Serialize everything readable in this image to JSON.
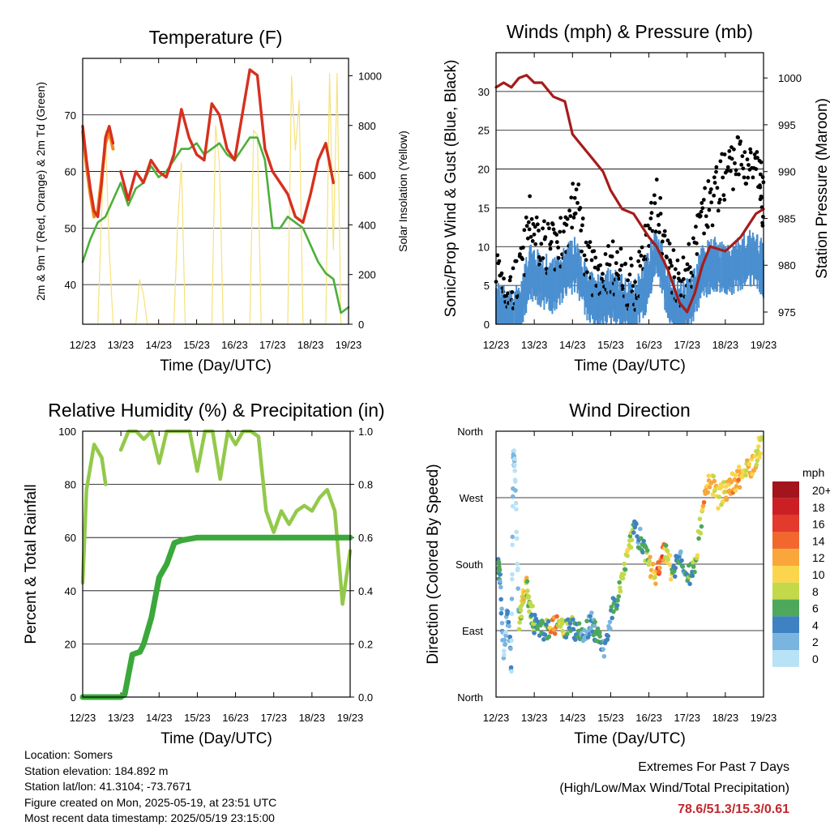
{
  "colors": {
    "temp": "#d7301f",
    "temp9m": "#f28a1b",
    "dew": "#4caf3a",
    "solar": "#f6e27a",
    "wind": "#4a8fd0",
    "gust": "#000000",
    "pressure": "#a51c1c",
    "rh": "#93c94a",
    "precip": "#3aa83a",
    "grid": "#000000"
  },
  "chart_data": [
    {
      "type": "line",
      "title": "Temperature (F)",
      "xlabel": "Time (Day/UTC)",
      "ylabel": "2m & 9m T (Red, Orange) & 2m Td (Green)",
      "ylabel_right": "Solar Insolation (Yellow)",
      "x_ticks": [
        "12/23",
        "13/23",
        "14/23",
        "15/23",
        "16/23",
        "17/23",
        "18/23",
        "19/23"
      ],
      "ylim": [
        33,
        80
      ],
      "ylim_right": [
        0,
        1070
      ],
      "y_ticks": [
        40,
        50,
        60,
        70
      ],
      "y_ticks_right": [
        0,
        200,
        400,
        600,
        800,
        1000
      ],
      "grid": true,
      "series": [
        {
          "role": "2m T",
          "x": [
            0,
            0.1,
            0.2,
            0.3,
            0.4,
            0.5,
            0.6,
            0.7,
            0.8,
            0.9,
            1.0,
            1.2,
            1.4,
            1.6,
            1.8,
            2.0,
            2.2,
            2.4,
            2.6,
            2.8,
            3.0,
            3.2,
            3.4,
            3.6,
            3.8,
            4.0,
            4.2,
            4.4,
            4.6,
            4.8,
            5.0,
            5.2,
            5.4,
            5.6,
            5.8,
            6.0,
            6.2,
            6.4,
            6.6,
            6.8,
            7.0
          ],
          "y": [
            68,
            62,
            57,
            53,
            52,
            58,
            66,
            68,
            65,
            null,
            60,
            55,
            60,
            58,
            62,
            60,
            59,
            63,
            71,
            66,
            63,
            62,
            72,
            70,
            64,
            62,
            70,
            78,
            77,
            64,
            60,
            58,
            56,
            52,
            51,
            56,
            62,
            65,
            58,
            null,
            null
          ]
        },
        {
          "role": "9m T",
          "x": [
            0,
            0.1,
            0.2,
            0.3,
            0.4,
            0.5,
            0.6,
            0.7,
            0.8
          ],
          "y": [
            67,
            61,
            56,
            52,
            53,
            59,
            65,
            67,
            64
          ]
        },
        {
          "role": "2m Td",
          "x": [
            0,
            0.2,
            0.4,
            0.6,
            0.8,
            1.0,
            1.2,
            1.4,
            1.6,
            1.8,
            2.0,
            2.2,
            2.4,
            2.6,
            2.8,
            3.0,
            3.2,
            3.4,
            3.6,
            3.8,
            4.0,
            4.2,
            4.4,
            4.6,
            4.8,
            5.0,
            5.2,
            5.4,
            5.6,
            5.8,
            6.0,
            6.2,
            6.4,
            6.6,
            6.8,
            7.0
          ],
          "y": [
            44,
            48,
            51,
            52,
            55,
            58,
            54,
            57,
            58,
            61,
            59,
            60,
            62,
            64,
            64,
            65,
            63,
            64,
            65,
            63,
            62,
            64,
            66,
            66,
            62,
            50,
            50,
            52,
            51,
            50,
            47,
            44,
            42,
            41,
            35,
            36
          ]
        },
        {
          "role": "Solar",
          "x": [
            0.4,
            0.5,
            0.6,
            0.7,
            0.8,
            1.4,
            1.5,
            1.6,
            1.7,
            2.4,
            2.5,
            2.6,
            2.7,
            3.4,
            3.5,
            3.6,
            3.7,
            4.4,
            4.5,
            4.6,
            4.7,
            5.4,
            5.5,
            5.6,
            5.7,
            5.8,
            6.4,
            6.5,
            6.6,
            6.7,
            6.8
          ],
          "y": [
            0,
            450,
            780,
            300,
            0,
            0,
            180,
            120,
            0,
            0,
            400,
            650,
            0,
            0,
            800,
            650,
            0,
            0,
            780,
            760,
            0,
            0,
            1000,
            700,
            900,
            0,
            0,
            1010,
            300,
            1010,
            0
          ]
        }
      ]
    },
    {
      "type": "line",
      "title": "Winds (mph) & Pressure (mb)",
      "xlabel": "Time (Day/UTC)",
      "ylabel": "Sonic/Prop Wind & Gust (Blue, Black)",
      "ylabel_right": "Station Pressure (Maroon)",
      "x_ticks": [
        "12/23",
        "13/23",
        "14/23",
        "15/23",
        "16/23",
        "17/23",
        "18/23",
        "19/23"
      ],
      "ylim": [
        0,
        35
      ],
      "ylim_right": [
        973.7,
        1002.7
      ],
      "y_ticks": [
        0,
        5,
        10,
        15,
        20,
        25,
        30
      ],
      "y_ticks_right": [
        975,
        980,
        985,
        990,
        995,
        1000
      ],
      "grid": true,
      "series": [
        {
          "role": "Wind",
          "x": [
            0,
            0.3,
            0.6,
            0.9,
            1.2,
            1.5,
            1.8,
            2.1,
            2.4,
            2.7,
            3.0,
            3.3,
            3.6,
            3.9,
            4.2,
            4.5,
            4.8,
            5.1,
            5.4,
            5.7,
            6.0,
            6.3,
            6.6,
            6.9,
            7.0
          ],
          "y": [
            4,
            2,
            3,
            8,
            7,
            6,
            8,
            9,
            5,
            4,
            5,
            4,
            3,
            6,
            11,
            5,
            3,
            4,
            8,
            9,
            8,
            9,
            10,
            9,
            8
          ]
        },
        {
          "role": "Gust",
          "x": [
            0,
            0.3,
            0.6,
            0.9,
            1.2,
            1.5,
            1.8,
            2.1,
            2.4,
            2.7,
            3.0,
            3.3,
            3.6,
            3.9,
            4.2,
            4.5,
            4.8,
            5.1,
            5.4,
            5.7,
            6.0,
            6.3,
            6.6,
            6.9,
            7.0
          ],
          "y": [
            8,
            5,
            6,
            14,
            11,
            10,
            12,
            17,
            8,
            7,
            8,
            7,
            5,
            10,
            16,
            9,
            6,
            8,
            14,
            17,
            20,
            22,
            21,
            19,
            16
          ]
        },
        {
          "role": "Pressure",
          "x": [
            0,
            0.2,
            0.4,
            0.6,
            0.8,
            1.0,
            1.2,
            1.5,
            1.8,
            2.0,
            2.2,
            2.5,
            2.8,
            3.0,
            3.3,
            3.6,
            4.0,
            4.2,
            4.5,
            4.8,
            5.0,
            5.2,
            5.4,
            5.6,
            6.0,
            6.4,
            6.8,
            7.0
          ],
          "y": [
            999,
            999.5,
            999,
            1000,
            1000.3,
            999.5,
            999.5,
            998,
            997.5,
            994,
            993,
            991.5,
            990,
            988,
            986,
            985.5,
            983,
            982,
            979.5,
            976,
            975,
            977,
            980,
            982,
            981.5,
            983,
            985.5,
            986
          ]
        }
      ]
    },
    {
      "type": "line",
      "title": "Relative Humidity (%) & Precipitation (in)",
      "xlabel": "Time (Day/UTC)",
      "ylabel": "Percent & Total Rainfall",
      "x_ticks": [
        "12/23",
        "13/23",
        "14/23",
        "15/23",
        "16/23",
        "17/23",
        "18/23",
        "19/23"
      ],
      "ylim": [
        0,
        100
      ],
      "ylim_right": [
        0,
        1.0
      ],
      "y_ticks": [
        0,
        20,
        40,
        60,
        80,
        100
      ],
      "y_ticks_right": [
        "0.0",
        "0.2",
        "0.4",
        "0.6",
        "0.8",
        "1.0"
      ],
      "grid": true,
      "series": [
        {
          "role": "RH",
          "x": [
            0,
            0.1,
            0.3,
            0.5,
            0.6,
            0.8,
            1.0,
            1.2,
            1.4,
            1.6,
            1.8,
            2.0,
            2.2,
            2.4,
            2.6,
            2.8,
            3.0,
            3.2,
            3.4,
            3.6,
            3.8,
            4.0,
            4.2,
            4.4,
            4.6,
            4.8,
            5.0,
            5.2,
            5.4,
            5.6,
            5.8,
            6.0,
            6.2,
            6.4,
            6.6,
            6.8,
            7.0
          ],
          "y": [
            43,
            78,
            95,
            90,
            80,
            null,
            93,
            100,
            100,
            97,
            100,
            88,
            100,
            100,
            100,
            100,
            85,
            100,
            100,
            82,
            100,
            95,
            100,
            100,
            98,
            70,
            62,
            70,
            65,
            70,
            72,
            70,
            75,
            78,
            70,
            35,
            55
          ]
        },
        {
          "role": "Precipitation",
          "x": [
            0,
            0.5,
            1.0,
            1.1,
            1.3,
            1.5,
            1.6,
            1.8,
            2.0,
            2.2,
            2.4,
            2.6,
            3.0,
            4.0,
            5.0,
            6.0,
            7.0
          ],
          "y": [
            0,
            0,
            0,
            0.01,
            0.16,
            0.17,
            0.2,
            0.3,
            0.45,
            0.5,
            0.58,
            0.59,
            0.6,
            0.6,
            0.6,
            0.6,
            0.6
          ]
        }
      ]
    },
    {
      "type": "scatter",
      "title": "Wind Direction",
      "xlabel": "Time (Day/UTC)",
      "ylabel": "Direction (Colored By Speed)",
      "x_ticks": [
        "12/23",
        "13/23",
        "14/23",
        "15/23",
        "16/23",
        "17/23",
        "18/23",
        "19/23"
      ],
      "y_ticks": [
        "North",
        "East",
        "South",
        "West",
        "North"
      ],
      "ylim": [
        0,
        360
      ],
      "grid": true,
      "legend": {
        "title": "mph",
        "labels": [
          "20+",
          "18",
          "16",
          "14",
          "12",
          "10",
          "8",
          "6",
          "4",
          "2",
          "0"
        ],
        "colors": [
          "#a4141c",
          "#cc1f24",
          "#e23a2c",
          "#f2672d",
          "#f9a63b",
          "#fbd64c",
          "#c3d94a",
          "#4ea85c",
          "#3f82c3",
          "#7ab5e0",
          "#b8e2f6"
        ]
      },
      "points": {
        "x": [
          0.05,
          0.1,
          0.2,
          0.3,
          0.4,
          0.45,
          0.5,
          0.6,
          0.7,
          0.8,
          0.9,
          1.0,
          1.2,
          1.4,
          1.6,
          1.8,
          2.0,
          2.2,
          2.4,
          2.5,
          2.6,
          2.8,
          3.0,
          3.2,
          3.4,
          3.6,
          3.8,
          4.0,
          4.2,
          4.4,
          4.6,
          4.8,
          5.0,
          5.2,
          5.4,
          5.6,
          5.8,
          6.0,
          6.2,
          6.4,
          6.6,
          6.8,
          6.95
        ],
        "y": [
          180,
          160,
          60,
          120,
          40,
          340,
          300,
          100,
          130,
          150,
          120,
          100,
          90,
          95,
          95,
          90,
          95,
          85,
          95,
          100,
          90,
          60,
          110,
          140,
          190,
          230,
          210,
          180,
          160,
          200,
          170,
          190,
          160,
          180,
          250,
          300,
          270,
          280,
          290,
          300,
          310,
          320,
          350
        ],
        "speed": [
          4,
          3,
          2,
          3,
          1,
          1,
          0,
          8,
          10,
          7,
          6,
          5,
          6,
          12,
          8,
          6,
          5,
          4,
          3,
          4,
          5,
          3,
          5,
          7,
          8,
          4,
          6,
          10,
          14,
          8,
          5,
          4,
          6,
          8,
          12,
          10,
          9,
          11,
          12,
          10,
          11,
          9,
          12
        ]
      }
    }
  ],
  "info": {
    "location": "Location: Somers",
    "elevation": "Station elevation: 184.892 m",
    "latlon": "Station lat/lon: 41.3104; -73.7671",
    "created": "Figure created on Mon, 2025-05-19, at 23:51 UTC",
    "recent": "Most recent data timestamp: 2025/05/19 23:15:00"
  },
  "extremes": {
    "title": "Extremes For Past 7 Days",
    "subtitle": "(High/Low/Max Wind/Total Precipitation)",
    "values": "78.6/51.3/15.3/0.61"
  }
}
